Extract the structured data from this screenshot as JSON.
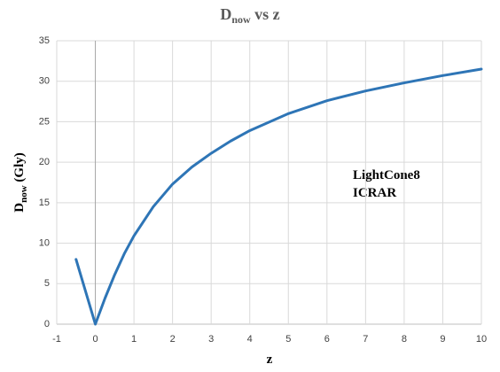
{
  "chart_data": {
    "type": "line",
    "title": [
      "D",
      "now",
      " vs z"
    ],
    "x_label": "z",
    "y_label": [
      "D",
      "now",
      " (Gly)"
    ],
    "annotations": [
      "LightCone8",
      "ICRAR"
    ],
    "x": [
      -0.5,
      0,
      0.25,
      0.5,
      0.75,
      1,
      1.5,
      2,
      2.5,
      3,
      3.5,
      4,
      5,
      6,
      7,
      8,
      9,
      10
    ],
    "series": [
      {
        "name": "Dnow",
        "color": "#2e75b6",
        "values": [
          8,
          0,
          3.2,
          6.1,
          8.7,
          10.9,
          14.5,
          17.3,
          19.4,
          21.1,
          22.6,
          23.9,
          26,
          27.6,
          28.8,
          29.8,
          30.7,
          31.5
        ]
      }
    ],
    "xlim": [
      -1,
      10
    ],
    "ylim": [
      0,
      35
    ],
    "xticks": [
      -1,
      0,
      1,
      2,
      3,
      4,
      5,
      6,
      7,
      8,
      9,
      10
    ],
    "yticks": [
      0,
      5,
      10,
      15,
      20,
      25,
      30,
      35
    ],
    "grid": true
  }
}
